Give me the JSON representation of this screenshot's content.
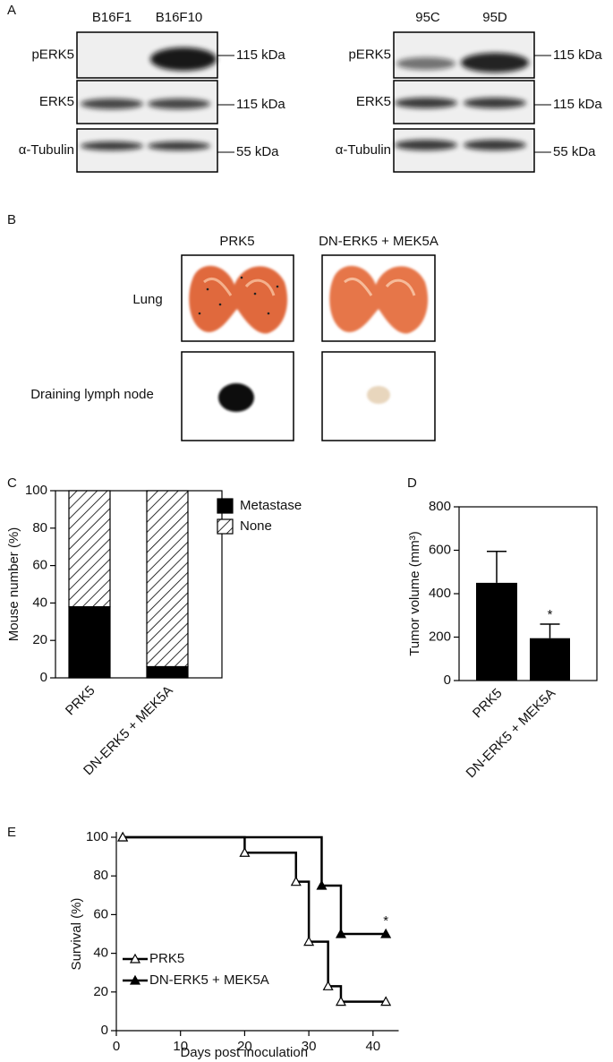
{
  "panel_labels": [
    "A",
    "B",
    "C",
    "D",
    "E"
  ],
  "blots": [
    {
      "lanes": [
        "B16F1",
        "B16F10"
      ],
      "rows": [
        "pERK5",
        "ERK5",
        "α-Tubulin"
      ],
      "sizes": [
        "115 kDa",
        "115 kDa",
        "55 kDa"
      ]
    },
    {
      "lanes": [
        "95C",
        "95D"
      ],
      "rows": [
        "pERK5",
        "ERK5",
        "α-Tubulin"
      ],
      "sizes": [
        "115 kDa",
        "115 kDa",
        "55 kDa"
      ]
    }
  ],
  "photos": {
    "columns": [
      "PRK5",
      "DN-ERK5 + MEK5A"
    ],
    "rows": [
      "Lung",
      "Draining lymph node"
    ]
  },
  "chart_data": [
    {
      "type": "stacked_bar",
      "categories": [
        "PRK5",
        "DN-ERK5 + MEK5A"
      ],
      "series": [
        {
          "name": "Metastase",
          "color": "#000000",
          "values": [
            38,
            6
          ]
        },
        {
          "name": "None",
          "color": "#ffffff",
          "hatch": true,
          "values": [
            62,
            94
          ]
        }
      ],
      "ylabel": "Mouse number (%)",
      "ylim": [
        0,
        100
      ],
      "yticks": [
        0,
        20,
        40,
        60,
        80,
        100
      ]
    },
    {
      "type": "bar",
      "categories": [
        "PRK5",
        "DN-ERK5 + MEK5A"
      ],
      "values": [
        450,
        195
      ],
      "errors": [
        145,
        65
      ],
      "color": "#000000",
      "annotation": {
        "text": "*",
        "category": 1
      },
      "ylabel": "Tumor volume (mm³)",
      "ylim": [
        0,
        800
      ],
      "yticks": [
        0,
        200,
        400,
        600,
        800
      ]
    },
    {
      "type": "step",
      "series": [
        {
          "name": "PRK5",
          "marker": "open-triangle",
          "x": [
            1,
            20,
            28,
            30,
            33,
            35,
            42
          ],
          "values": [
            100,
            92,
            77,
            46,
            23,
            15,
            15
          ]
        },
        {
          "name": "DN-ERK5 + MEK5A",
          "marker": "filled-triangle",
          "x": [
            1,
            32,
            35,
            42
          ],
          "values": [
            100,
            75,
            50,
            50
          ]
        }
      ],
      "annotation": {
        "text": "*",
        "series": 1
      },
      "xlabel": "Days post inoculation",
      "ylabel": "Survival (%)",
      "xlim": [
        0,
        44
      ],
      "xticks": [
        0,
        10,
        20,
        30,
        40
      ],
      "ylim": [
        0,
        100
      ],
      "yticks": [
        0,
        20,
        40,
        60,
        80,
        100
      ]
    }
  ]
}
